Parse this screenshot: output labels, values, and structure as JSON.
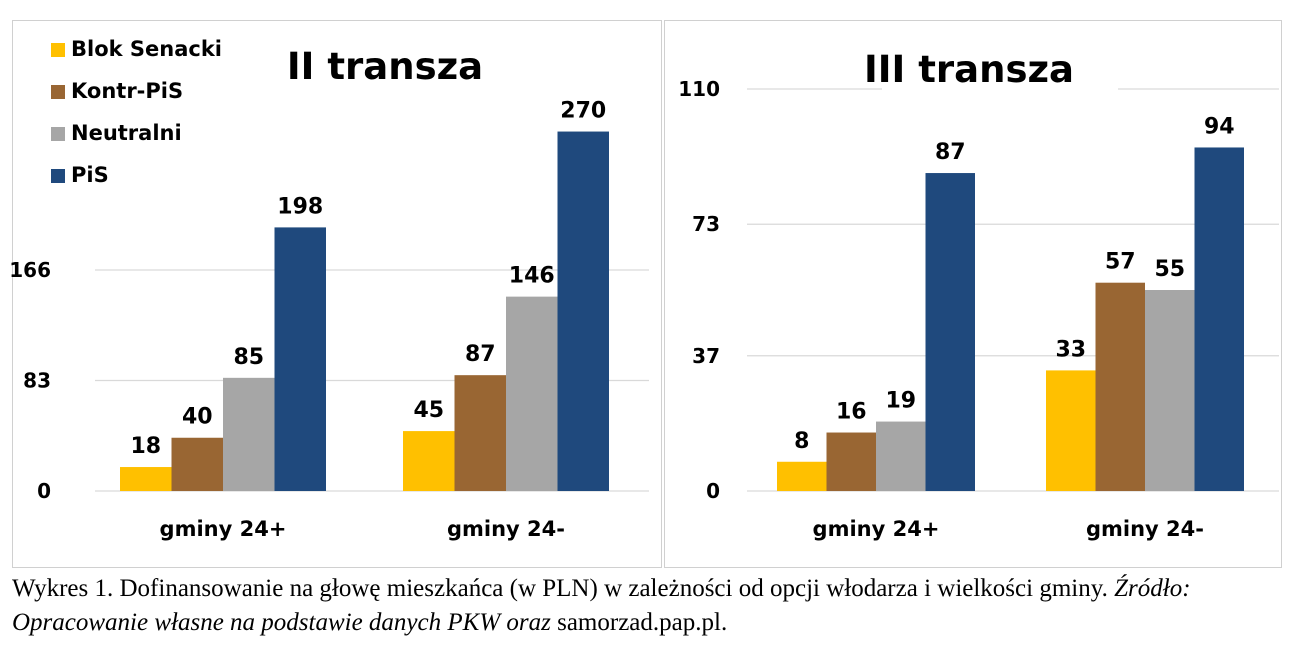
{
  "colors": {
    "Blok Senacki": "#ffc000",
    "Kontr-PiS": "#996633",
    "Neutralni": "#a6a6a6",
    "PiS": "#1f497d",
    "grid": "#d9d9d9"
  },
  "chart_data": [
    {
      "type": "bar",
      "title": "II transza",
      "categories": [
        "gminy 24+",
        "gminy 24-"
      ],
      "series": [
        {
          "name": "Blok Senacki",
          "values": [
            18,
            45
          ]
        },
        {
          "name": "Kontr-PiS",
          "values": [
            40,
            87
          ]
        },
        {
          "name": "Neutralni",
          "values": [
            85,
            146
          ]
        },
        {
          "name": "PiS",
          "values": [
            198,
            270
          ]
        }
      ],
      "yticks": [
        0,
        83,
        166
      ],
      "ylim": [
        0,
        332
      ],
      "grid": true,
      "legend": "top-left"
    },
    {
      "type": "bar",
      "title": "III transza",
      "categories": [
        "gminy 24+",
        "gminy 24-"
      ],
      "series": [
        {
          "name": "Blok Senacki",
          "values": [
            8,
            33
          ]
        },
        {
          "name": "Kontr-PiS",
          "values": [
            16,
            57
          ]
        },
        {
          "name": "Neutralni",
          "values": [
            19,
            55
          ]
        },
        {
          "name": "PiS",
          "values": [
            87,
            94
          ]
        }
      ],
      "yticks": [
        0,
        37,
        73,
        110
      ],
      "ylim": [
        0,
        110
      ],
      "grid": true,
      "legend": "none"
    }
  ],
  "caption": {
    "text_1": "Wykres 1. Dofinansowanie na głowę mieszkańca (w PLN) w zależności od opcji włodarza i wielkości gminy. ",
    "text_italic": "Źródło: Opracowanie własne na podstawie danych PKW oraz",
    "text_2": " samorzad.pap.pl."
  }
}
